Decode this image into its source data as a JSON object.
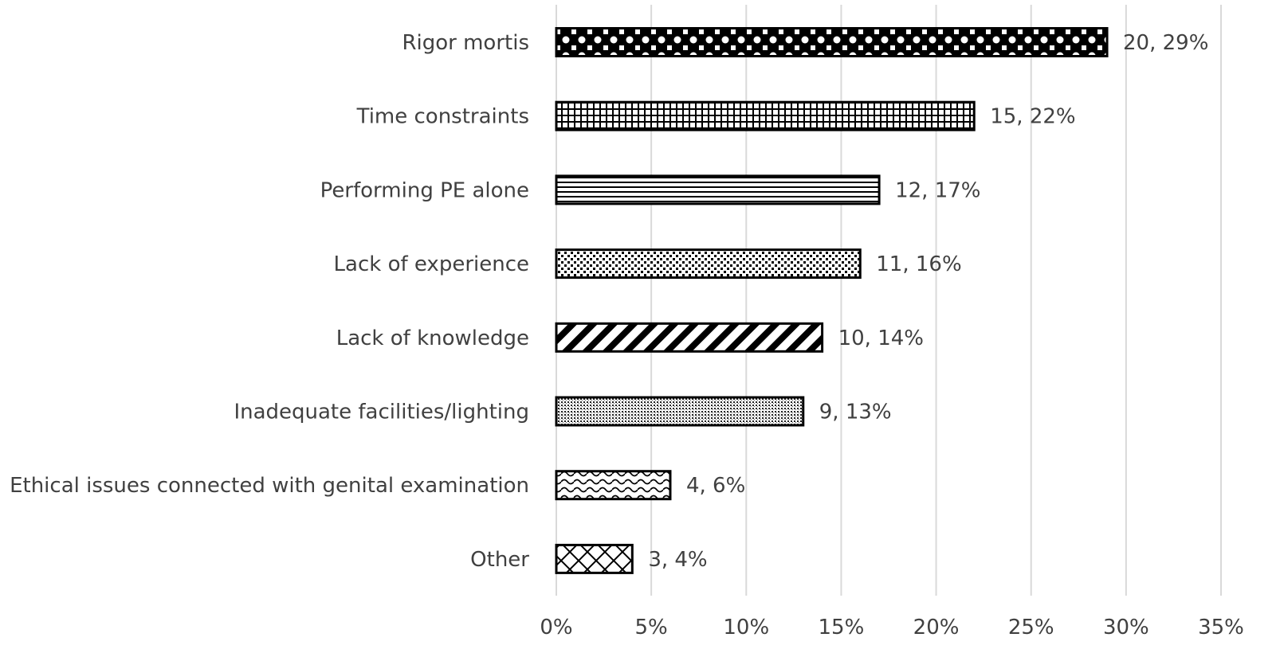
{
  "chart_data": {
    "type": "bar",
    "orientation": "horizontal",
    "categories": [
      "Rigor mortis",
      "Time constraints",
      "Performing PE alone",
      "Lack of experience",
      "Lack of knowledge",
      "Inadequate facilities/lighting",
      "Ethical issues connected with genital examination",
      "Other"
    ],
    "counts": [
      20,
      15,
      12,
      11,
      10,
      9,
      4,
      3
    ],
    "values": [
      29,
      22,
      17,
      16,
      14,
      13,
      6,
      4
    ],
    "data_labels": [
      "20, 29%",
      "15, 22%",
      "12, 17%",
      "11, 16%",
      "10, 14%",
      "9, 13%",
      "4, 6%",
      "3, 4%"
    ],
    "patterns": [
      "diamond-dots",
      "grid",
      "horizontal-lines",
      "dots",
      "wide-diagonal",
      "fine-dots",
      "wave",
      "diagonal-cross"
    ],
    "xlim": [
      0,
      35
    ],
    "x_ticks": [
      "0%",
      "5%",
      "10%",
      "15%",
      "20%",
      "25%",
      "30%",
      "35%"
    ],
    "grid": true,
    "legend": "none",
    "title": "",
    "xlabel": "",
    "ylabel": "",
    "colors": {
      "bar_stroke": "#000000",
      "grid": "#d9d9d9",
      "text": "#404040"
    }
  }
}
